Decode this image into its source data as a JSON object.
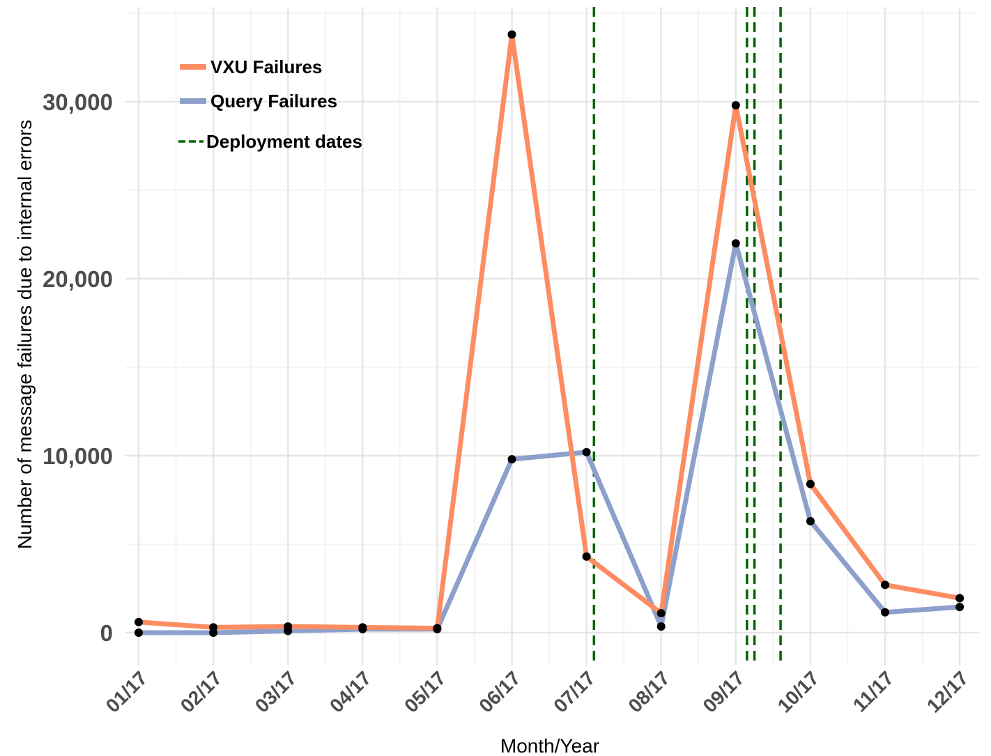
{
  "chart_data": {
    "type": "line",
    "title": "",
    "xlabel": "Month/Year",
    "ylabel": "Number of message failures due to internal errors",
    "categories": [
      "01/17",
      "02/17",
      "03/17",
      "04/17",
      "05/17",
      "06/17",
      "07/17",
      "08/17",
      "09/17",
      "10/17",
      "11/17",
      "12/17"
    ],
    "ylim": [
      -1500,
      35000
    ],
    "yticks": [
      0,
      10000,
      20000,
      30000
    ],
    "ytick_labels": [
      "0",
      "10,000",
      "20,000",
      "30,000"
    ],
    "grid": true,
    "legend_position": "top-left",
    "series": [
      {
        "name": "VXU Failures",
        "color": "#fc8d62",
        "values": [
          600,
          300,
          350,
          300,
          250,
          33800,
          4300,
          1100,
          29800,
          8400,
          2700,
          1950
        ]
      },
      {
        "name": "Query Failures",
        "color": "#8da0cb",
        "values": [
          0,
          0,
          100,
          200,
          200,
          9800,
          10200,
          350,
          22000,
          6300,
          1150,
          1450
        ]
      }
    ],
    "point_color": "#000000",
    "deployment_dates": {
      "name": "Deployment dates",
      "color": "#006400",
      "x_positions": [
        6.1,
        8.15,
        8.25,
        8.6
      ]
    }
  }
}
